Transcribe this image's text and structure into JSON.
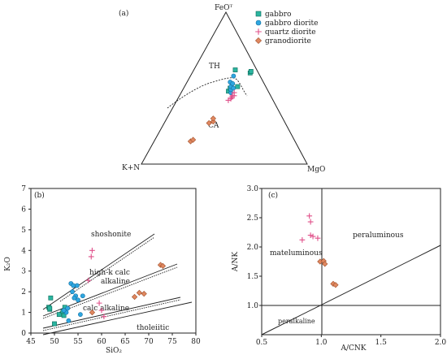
{
  "chart_data": [
    {
      "type": "scatter",
      "panel_label": "(a)",
      "diagram": "ternary",
      "apex_top": "FeOᵀ",
      "apex_left": "K+N",
      "apex_right": "MgO",
      "field_labels": [
        "TH",
        "CA"
      ],
      "legend_placement": "top-right",
      "series": [
        {
          "name": "gabbro",
          "color": "#2bb5a0",
          "marker": "square",
          "points": [
            [
              0.24,
              0.48
            ],
            [
              0.22,
              0.5
            ],
            [
              0.17,
              0.51
            ],
            [
              0.05,
              0.6
            ],
            [
              0.04,
              0.61
            ],
            [
              0.13,
              0.62
            ]
          ]
        },
        {
          "name": "gabbro diorite",
          "color": "#2ea6e0",
          "marker": "circle",
          "points": [
            [
              0.23,
              0.47
            ],
            [
              0.22,
              0.49
            ],
            [
              0.21,
              0.51
            ],
            [
              0.2,
              0.5
            ],
            [
              0.2,
              0.54
            ],
            [
              0.19,
              0.53
            ],
            [
              0.16,
              0.58
            ]
          ]
        },
        {
          "name": "quartz diorite",
          "color": "#e0508a",
          "marker": "plus",
          "points": [
            [
              0.27,
              0.42
            ],
            [
              0.25,
              0.43
            ],
            [
              0.24,
              0.44
            ],
            [
              0.22,
              0.45
            ],
            [
              0.21,
              0.47
            ],
            [
              0.23,
              0.45
            ]
          ]
        },
        {
          "name": "granodiorite",
          "color": "#e08860",
          "marker": "diamond",
          "points": [
            [
              0.46,
              0.27
            ],
            [
              0.43,
              0.28
            ],
            [
              0.42,
              0.3
            ],
            [
              0.63,
              0.15
            ],
            [
              0.61,
              0.16
            ]
          ]
        }
      ]
    },
    {
      "type": "scatter",
      "panel_label": "(b)",
      "xlabel": "SiO₂",
      "ylabel": "K₂O",
      "xlim": [
        45,
        80
      ],
      "ylim": [
        0,
        7
      ],
      "xticks": [
        45,
        50,
        55,
        60,
        65,
        70,
        75,
        80
      ],
      "yticks": [
        0,
        1,
        2,
        3,
        4,
        5,
        6,
        7
      ],
      "field_labels": [
        "shoshonite",
        "high-k calc alkaline",
        "calc alkaline",
        "tholeiitic"
      ],
      "series": [
        {
          "name": "gabbro",
          "color": "#2bb5a0",
          "marker": "square",
          "points": [
            [
              49.2,
              1.7
            ],
            [
              48.8,
              1.25
            ],
            [
              49.0,
              1.15
            ],
            [
              51.0,
              0.9
            ],
            [
              52.0,
              0.85
            ],
            [
              51.8,
              1.05
            ],
            [
              52.2,
              1.25
            ],
            [
              50.0,
              0.45
            ],
            [
              49.0,
              1.2
            ]
          ]
        },
        {
          "name": "gabbro diorite",
          "color": "#2ea6e0",
          "marker": "circle",
          "points": [
            [
              52.5,
              1.0
            ],
            [
              52.8,
              1.2
            ],
            [
              53.5,
              2.4
            ],
            [
              54.0,
              2.3
            ],
            [
              53.8,
              2.0
            ],
            [
              54.5,
              1.8
            ],
            [
              54.8,
              2.3
            ],
            [
              55.0,
              1.6
            ],
            [
              54.2,
              1.7
            ],
            [
              56.0,
              1.8
            ],
            [
              55.5,
              0.9
            ],
            [
              52.0,
              1.1
            ],
            [
              53.0,
              0.6
            ]
          ]
        },
        {
          "name": "quartz diorite",
          "color": "#e0508a",
          "marker": "plus",
          "points": [
            [
              58.0,
              4.0
            ],
            [
              57.8,
              3.7
            ],
            [
              57.2,
              2.55
            ],
            [
              59.5,
              1.45
            ],
            [
              60.0,
              1.1
            ],
            [
              60.5,
              0.8
            ]
          ]
        },
        {
          "name": "granodiorite",
          "color": "#e08860",
          "marker": "diamond",
          "points": [
            [
              67.0,
              1.75
            ],
            [
              68.0,
              1.95
            ],
            [
              69.0,
              1.9
            ],
            [
              72.5,
              3.3
            ],
            [
              73.0,
              3.25
            ],
            [
              58.0,
              1.0
            ]
          ]
        }
      ]
    },
    {
      "type": "scatter",
      "panel_label": "(c)",
      "xlabel": "A/CNK",
      "ylabel": "A/NK",
      "xlim": [
        0.5,
        2.0
      ],
      "ylim": [
        0.5,
        3.0
      ],
      "xticks": [
        "0.5",
        "1.0",
        "1.5",
        "2.0"
      ],
      "yticks": [
        "1.0",
        "1.5",
        "2.0",
        "2.5",
        "3.0"
      ],
      "field_labels": [
        "peraluminous",
        "mateluminous",
        "peralkaline"
      ],
      "series": [
        {
          "name": "quartz diorite",
          "color": "#e0508a",
          "marker": "plus",
          "points": [
            [
              0.9,
              2.53
            ],
            [
              0.91,
              2.43
            ],
            [
              0.93,
              2.18
            ],
            [
              0.91,
              2.2
            ],
            [
              0.84,
              2.12
            ],
            [
              0.97,
              2.15
            ]
          ]
        },
        {
          "name": "granodiorite",
          "color": "#e08860",
          "marker": "diamond",
          "points": [
            [
              0.99,
              1.75
            ],
            [
              1.02,
              1.76
            ],
            [
              1.03,
              1.71
            ],
            [
              1.1,
              1.37
            ],
            [
              1.12,
              1.35
            ]
          ]
        }
      ]
    }
  ]
}
